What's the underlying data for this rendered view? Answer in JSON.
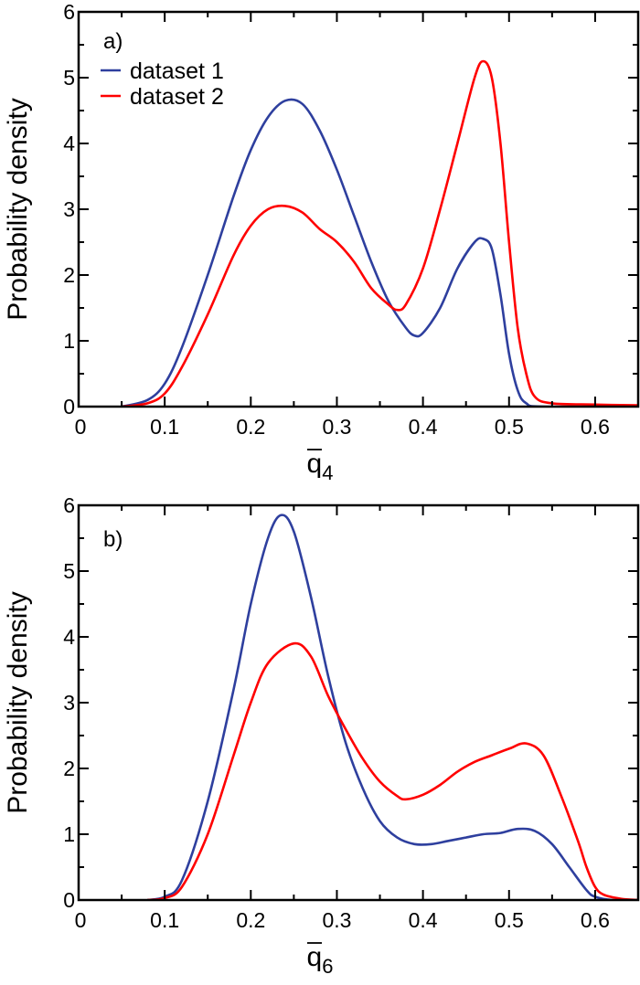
{
  "chart_data": [
    {
      "type": "line",
      "panel_label": "a)",
      "xlabel": "q",
      "xlabel_sub": "4",
      "ylabel": "Probability density",
      "xlim": [
        0,
        0.65
      ],
      "ylim": [
        0,
        6
      ],
      "xticks": [
        "0",
        "0.1",
        "0.2",
        "0.3",
        "0.4",
        "0.5",
        "0.6"
      ],
      "yticks": [
        "0",
        "1",
        "2",
        "3",
        "4",
        "5",
        "6"
      ],
      "legend": "top-left",
      "series": [
        {
          "name": "dataset 1",
          "color": "#2e3f9e",
          "x": [
            0.05,
            0.08,
            0.1,
            0.12,
            0.15,
            0.18,
            0.2,
            0.22,
            0.24,
            0.26,
            0.28,
            0.3,
            0.32,
            0.34,
            0.36,
            0.38,
            0.39,
            0.4,
            0.42,
            0.44,
            0.46,
            0.47,
            0.48,
            0.49,
            0.5,
            0.51,
            0.52,
            0.54,
            0.65
          ],
          "y": [
            0,
            0.1,
            0.35,
            0.9,
            2.0,
            3.2,
            3.9,
            4.4,
            4.65,
            4.6,
            4.2,
            3.6,
            2.9,
            2.2,
            1.6,
            1.2,
            1.08,
            1.12,
            1.5,
            2.1,
            2.5,
            2.55,
            2.4,
            1.7,
            0.8,
            0.25,
            0.05,
            0,
            0
          ]
        },
        {
          "name": "dataset 2",
          "color": "#ff0000",
          "x": [
            0.05,
            0.08,
            0.1,
            0.12,
            0.15,
            0.18,
            0.2,
            0.22,
            0.24,
            0.26,
            0.28,
            0.3,
            0.32,
            0.34,
            0.36,
            0.37,
            0.38,
            0.4,
            0.42,
            0.44,
            0.46,
            0.47,
            0.48,
            0.49,
            0.5,
            0.51,
            0.52,
            0.53,
            0.55,
            0.6,
            0.65
          ],
          "y": [
            0,
            0.05,
            0.2,
            0.6,
            1.4,
            2.3,
            2.75,
            3.0,
            3.05,
            2.95,
            2.7,
            2.5,
            2.2,
            1.8,
            1.55,
            1.47,
            1.55,
            2.1,
            3.0,
            4.0,
            5.0,
            5.25,
            5.0,
            4.0,
            2.5,
            1.2,
            0.5,
            0.15,
            0.05,
            0.03,
            0.02
          ]
        }
      ]
    },
    {
      "type": "line",
      "panel_label": "b)",
      "xlabel": "q",
      "xlabel_sub": "6",
      "ylabel": "Probability density",
      "xlim": [
        0,
        0.65
      ],
      "ylim": [
        0,
        6
      ],
      "xticks": [
        "0",
        "0.1",
        "0.2",
        "0.3",
        "0.4",
        "0.5",
        "0.6"
      ],
      "yticks": [
        "0",
        "1",
        "2",
        "3",
        "4",
        "5",
        "6"
      ],
      "series": [
        {
          "name": "dataset 1",
          "color": "#2e3f9e",
          "x": [
            0.08,
            0.1,
            0.12,
            0.15,
            0.18,
            0.2,
            0.22,
            0.235,
            0.25,
            0.27,
            0.29,
            0.31,
            0.33,
            0.35,
            0.37,
            0.39,
            0.41,
            0.43,
            0.45,
            0.47,
            0.49,
            0.51,
            0.53,
            0.55,
            0.57,
            0.59,
            0.6,
            0.62,
            0.65
          ],
          "y": [
            0,
            0.05,
            0.3,
            1.5,
            3.2,
            4.5,
            5.5,
            5.85,
            5.6,
            4.6,
            3.4,
            2.4,
            1.7,
            1.2,
            0.95,
            0.85,
            0.85,
            0.9,
            0.95,
            1.0,
            1.02,
            1.08,
            1.05,
            0.85,
            0.5,
            0.15,
            0.05,
            0,
            0
          ]
        },
        {
          "name": "dataset 2",
          "color": "#ff0000",
          "x": [
            0.08,
            0.1,
            0.12,
            0.15,
            0.18,
            0.2,
            0.22,
            0.25,
            0.27,
            0.29,
            0.31,
            0.33,
            0.35,
            0.37,
            0.38,
            0.4,
            0.42,
            0.44,
            0.46,
            0.48,
            0.5,
            0.52,
            0.54,
            0.56,
            0.58,
            0.59,
            0.6,
            0.61,
            0.63,
            0.65
          ],
          "y": [
            0,
            0.03,
            0.2,
            1.0,
            2.2,
            3.0,
            3.6,
            3.9,
            3.7,
            3.1,
            2.6,
            2.15,
            1.8,
            1.58,
            1.53,
            1.6,
            1.75,
            1.95,
            2.1,
            2.2,
            2.3,
            2.38,
            2.2,
            1.6,
            0.9,
            0.5,
            0.2,
            0.08,
            0.02,
            0
          ]
        }
      ]
    }
  ]
}
